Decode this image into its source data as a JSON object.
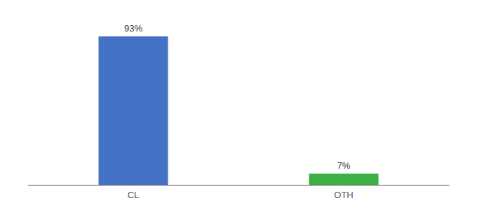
{
  "chart_data": {
    "type": "bar",
    "categories": [
      "CL",
      "OTH"
    ],
    "values": [
      93,
      7
    ],
    "value_labels": [
      "93%",
      "7%"
    ],
    "colors": [
      "#4472c4",
      "#3cb043"
    ],
    "ylim": [
      0,
      100
    ],
    "data_labels": true,
    "tick_labels": "x",
    "grid": false
  }
}
